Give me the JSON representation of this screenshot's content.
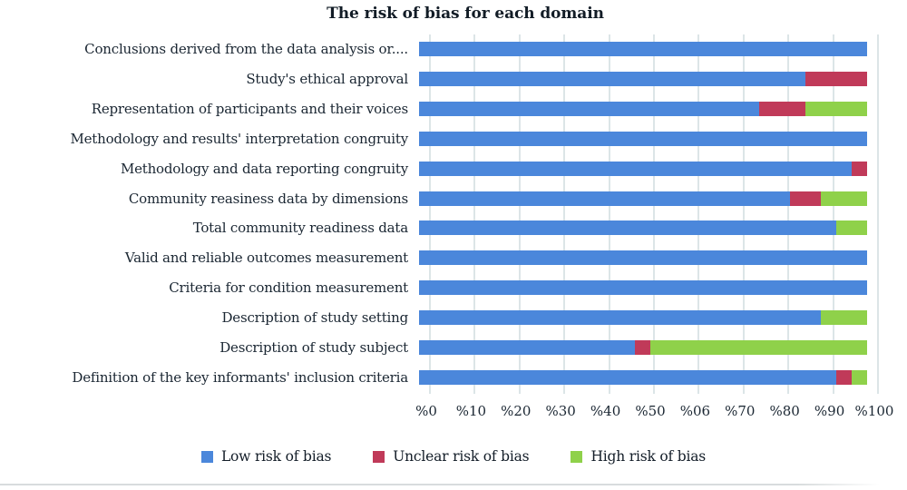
{
  "figure": {
    "title": "The risk of bias for each domain"
  },
  "chart_data": {
    "type": "bar",
    "orientation": "horizontal-stacked",
    "title": "The risk of bias for each domain",
    "categories": [
      "Conclusions derived from the data analysis or....",
      "Study's ethical approval",
      "Representation of participants and their voices",
      "Methodology and results' interpretation congruity",
      "Methodology and data reporting congruity",
      "Community reasiness data by dimensions",
      "Total community readiness data",
      "Valid and reliable outcomes measurement",
      "Criteria for condition measurement",
      "Description of study setting",
      "Description of study subject",
      "Definition of the key informants' inclusion criteria"
    ],
    "series": [
      {
        "name": "Low risk of bias",
        "color": "#4B87DB",
        "values": [
          100,
          86.2,
          75.9,
          100,
          96.6,
          82.8,
          93.1,
          100,
          100,
          89.7,
          48.3,
          93.2
        ]
      },
      {
        "name": "Unclear risk of bias",
        "color": "#C03A59",
        "values": [
          0,
          13.8,
          10.3,
          0,
          3.4,
          6.9,
          0,
          0,
          0,
          0,
          3.4,
          3.4
        ]
      },
      {
        "name": "High risk of bias",
        "color": "#8FD14A",
        "values": [
          0,
          0,
          13.8,
          0,
          0,
          10.3,
          6.9,
          0,
          0,
          10.3,
          48.4,
          3.4
        ]
      }
    ],
    "x_tick_labels": [
      "%0",
      "%10",
      "%20",
      "%30",
      "%40",
      "%50",
      "%06",
      "%70",
      "%80",
      "%90",
      "%100"
    ],
    "xlim": [
      0,
      100
    ],
    "grid": "vertical-only",
    "gridline_color": "#dce5e7",
    "legend_position": "bottom"
  }
}
